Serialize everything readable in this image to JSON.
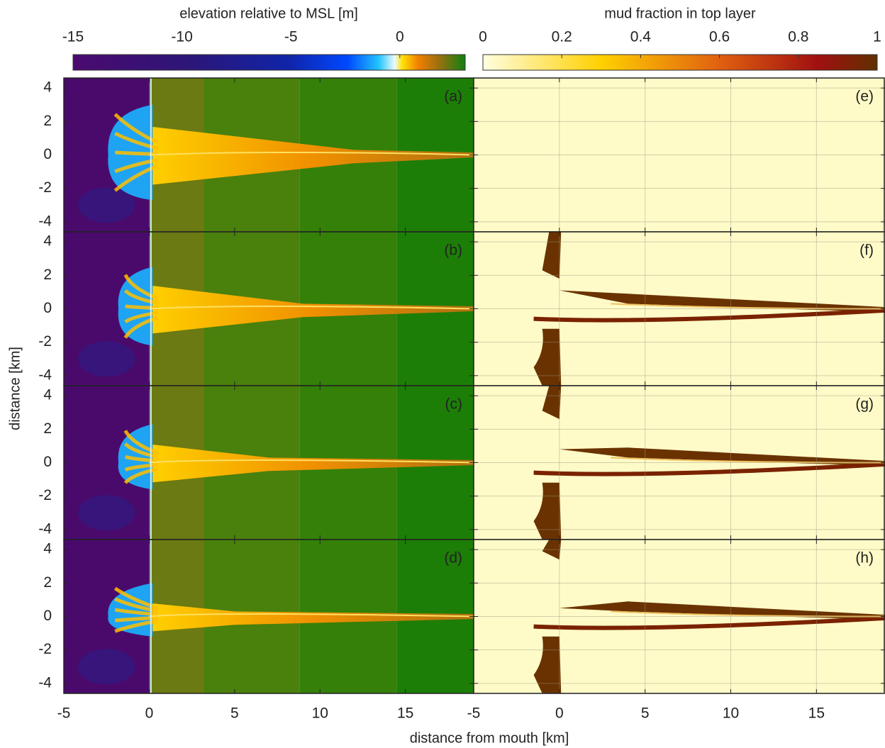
{
  "chart_data": {
    "type": "heatmap",
    "xlabel": "distance from mouth [km]",
    "ylabel": "distance [km]",
    "xlim": [
      -5,
      19
    ],
    "xticks": [
      -5,
      0,
      5,
      10,
      15
    ],
    "ylim": [
      -4.6,
      4.6
    ],
    "yticks": [
      -4,
      -2,
      0,
      2,
      4
    ],
    "grid": true,
    "colorbars": [
      {
        "label": "elevation relative to MSL [m]",
        "lim": [
          -15,
          3
        ],
        "ticks": [
          -15,
          -10,
          -5,
          0
        ]
      },
      {
        "label": "mud fraction in top layer",
        "lim": [
          0,
          1
        ],
        "ticks": [
          0,
          0.2,
          0.4,
          0.6,
          0.8,
          1
        ]
      }
    ],
    "panels": [
      "(a)",
      "(b)",
      "(c)",
      "(d)",
      "(e)",
      "(f)",
      "(g)",
      "(h)"
    ]
  }
}
